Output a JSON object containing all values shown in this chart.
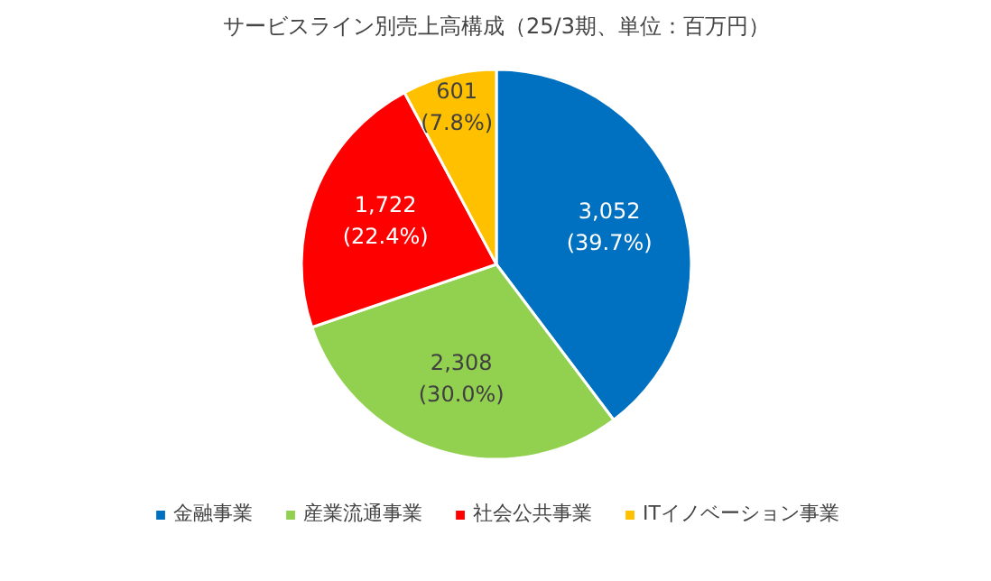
{
  "chart_data": {
    "type": "pie",
    "title": "サービスライン別売上高構成（25/3期、単位：百万円）",
    "categories": [
      "金融事業",
      "産業流通事業",
      "社会公共事業",
      "ITイノベーション事業"
    ],
    "values": [
      3052,
      2308,
      1722,
      601
    ],
    "colors": [
      "#0070c0",
      "#92d050",
      "#ff0000",
      "#ffc000"
    ],
    "value_labels": [
      "3,052\n(39.7%)",
      "2,308\n(30.0%)",
      "1,722\n(22.4%)",
      "601\n(7.8%)"
    ],
    "legend": "bottom"
  }
}
